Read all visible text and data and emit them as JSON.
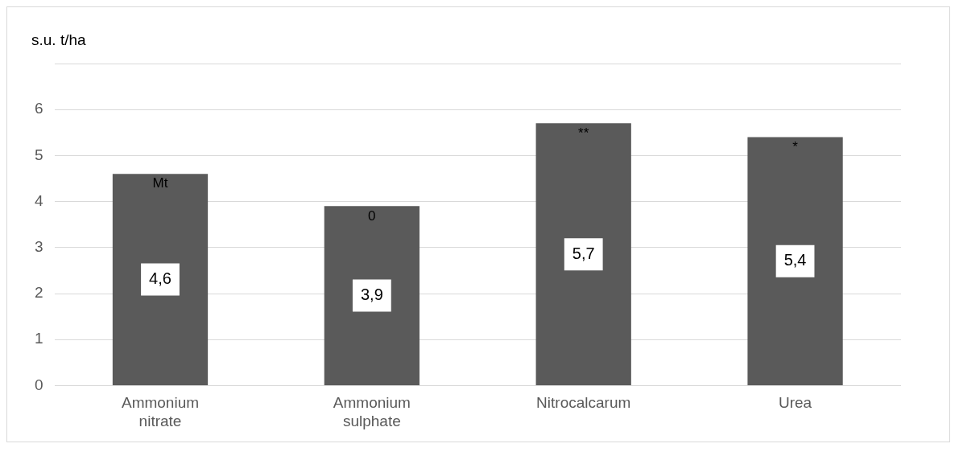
{
  "chart_data": {
    "type": "bar",
    "ylabel": "s.u. t/ha",
    "categories": [
      "Ammonium nitrate",
      "Ammonium sulphate",
      "Nitrocalcarum",
      "Urea"
    ],
    "values": [
      4.6,
      3.9,
      5.7,
      5.4
    ],
    "color": "#5a5a5a",
    "value_labels": [
      "4,6",
      "3,9",
      "5,7",
      "5,4"
    ],
    "annotations": [
      {
        "text": "Mt",
        "x": "Ammonium nitrate",
        "y": 4.6
      },
      {
        "text": "0",
        "x": "Ammonium sulphate",
        "y": 3.9
      },
      {
        "text": "**",
        "x": "Nitrocalcarum",
        "y": 5.7
      },
      {
        "text": "*",
        "x": "Urea",
        "y": 5.4
      }
    ],
    "ylim": [
      0,
      7
    ],
    "yticks": [
      0,
      1,
      2,
      3,
      4,
      5,
      6,
      {
        "value": 7,
        "label": null
      }
    ],
    "grid": "y",
    "legend": false
  }
}
